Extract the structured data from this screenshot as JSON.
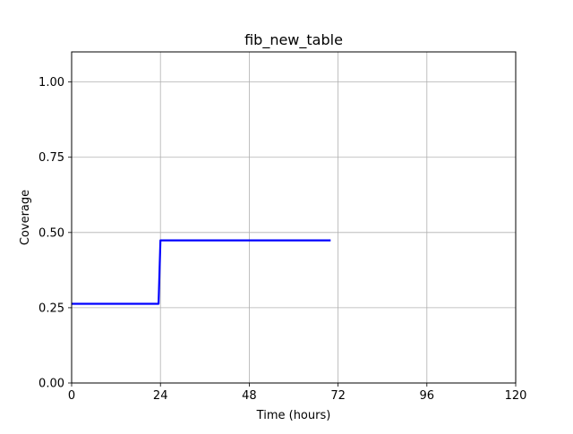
{
  "chart_data": {
    "type": "line",
    "title": "fib_new_table",
    "xlabel": "Time (hours)",
    "ylabel": "Coverage",
    "xlim": [
      0,
      120
    ],
    "ylim": [
      0,
      1.1
    ],
    "xticks": [
      0,
      24,
      48,
      72,
      96,
      120
    ],
    "xtick_labels": [
      "0",
      "24",
      "48",
      "72",
      "96",
      "120"
    ],
    "yticks": [
      0,
      0.25,
      0.5,
      0.75,
      1.0
    ],
    "ytick_labels": [
      "0.00",
      "0.25",
      "0.50",
      "0.75",
      "1.00"
    ],
    "grid": true,
    "series": [
      {
        "color": "#0000ff",
        "x": [
          0,
          23.5,
          24,
          70
        ],
        "y": [
          0.263,
          0.263,
          0.474,
          0.474
        ]
      }
    ]
  }
}
